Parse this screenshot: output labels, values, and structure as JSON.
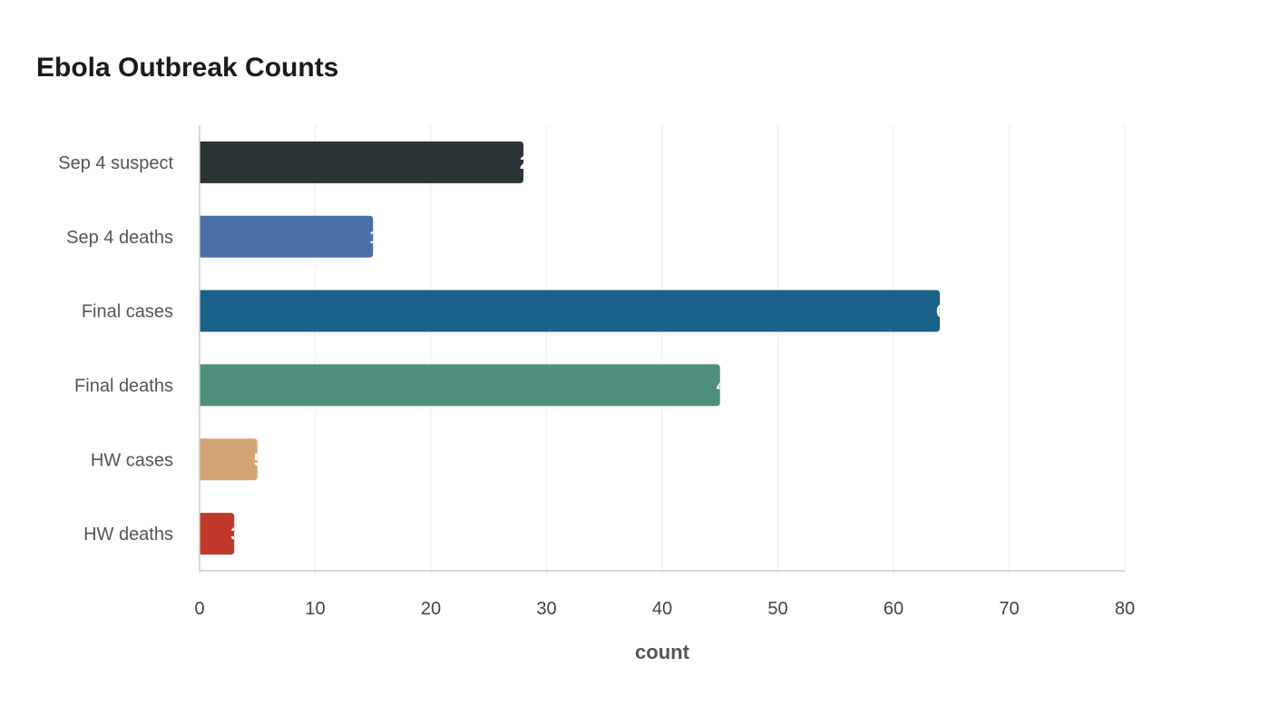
{
  "chart_data": {
    "type": "bar",
    "orientation": "horizontal",
    "title": "Ebola Outbreak Counts",
    "xlabel": "count",
    "ylabel": "",
    "categories": [
      "Sep 4 suspect",
      "Sep 4 deaths",
      "Final cases",
      "Final deaths",
      "HW cases",
      "HW deaths"
    ],
    "values": [
      28,
      15,
      64,
      45,
      5,
      3
    ],
    "colors": [
      "#2d3436",
      "#4a6fa5",
      "#1a6189",
      "#4f8e7d",
      "#d4a574",
      "#c0392b"
    ],
    "xlim": [
      0,
      80
    ],
    "xticks": [
      0,
      10,
      20,
      30,
      40,
      50,
      60,
      70,
      80
    ],
    "grid": true,
    "legend": "none"
  }
}
